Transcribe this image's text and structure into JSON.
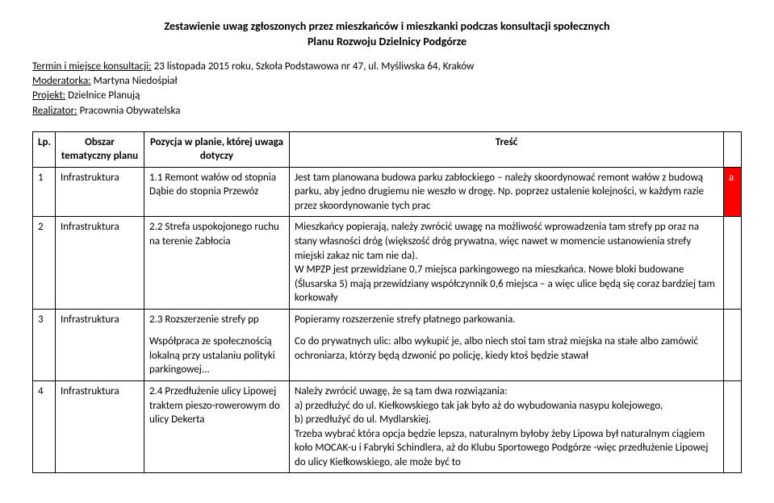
{
  "header": {
    "title": "Zestawienie uwag zgłoszonych przez mieszkańców i mieszkanki podczas konsultacji społecznych",
    "subtitle": "Planu Rozwoju Dzielnicy Podgórze"
  },
  "meta": {
    "term_label": "Termin i miejsce konsultacji:",
    "term_value": " 23 listopada 2015 roku, Szkoła Podstawowa nr 47, ul. Myśliwska 64, Kraków",
    "moderator_label": "Moderatorka:",
    "moderator_value": " Martyna Niedośpiał",
    "project_label": "Projekt:",
    "project_value": " Dzielnice Planują",
    "realizer_label": "Realizator:",
    "realizer_value": " Pracownia Obywatelska"
  },
  "table": {
    "headers": {
      "lp": "Lp.",
      "area": "Obszar tematyczny planu",
      "position": "Pozycja w planie, której uwaga dotyczy",
      "content": "Treść",
      "flag": ""
    },
    "rows": [
      {
        "lp": "1",
        "area": "Infrastruktura",
        "position": "1.1 Remont wałów od stopnia Dąbie do stopnia Przewóz",
        "content": "Jest tam planowana budowa parku zabłockiego – należy skoordynować remont wałów z budową parku, aby jedno drugiemu nie weszło w drogę. Np. poprzez ustalenie kolejności, w każdym razie przez skoordynowanie tych prac",
        "flag": "a",
        "flag_class": "flag-a"
      },
      {
        "lp": "2",
        "area": "Infrastruktura",
        "position": "2.2 Strefa uspokojonego ruchu na terenie Zabłocia",
        "content": "Mieszkańcy popierają, należy zwrócić uwagę na możliwość wprowadzenia tam strefy pp oraz na stany własności dróg (większość dróg prywatna, więc nawet w momencie ustanowienia strefy miejski zakaz nic tam nie da).\nW MPZP jest przewidziane 0,7 miejsca parkingowego na mieszkańca. Nowe bloki budowane (Ślusarska 5) mają przewidziany współczynnik 0,6 miejsca – a więc ulice będą się coraz bardziej tam korkowały",
        "flag": ""
      },
      {
        "lp": "3",
        "area": "Infrastruktura",
        "position": "2.3 Rozszerzenie strefy pp",
        "position2": "Współpraca ze społecznością lokalną przy ustalaniu polityki parkingowej...",
        "content": "Popieramy rozszerzenie strefy płatnego parkowania.",
        "content2": "Co do prywatnych ulic: albo wykupić je, albo niech stoi tam straż miejska na stałe albo zamówić ochroniarza, którzy będą dzwonić po policję, kiedy ktoś będzie stawał",
        "flag": ""
      },
      {
        "lp": "4",
        "area": "Infrastruktura",
        "position": "2.4 Przedłużenie ulicy Lipowej traktem pieszo-rowerowym do ulicy Dekerta",
        "content": "Należy zwrócić uwagę, że są tam dwa rozwiązania:\na) przedłużyć do ul. Kiełkowskiego tak jak było aż do wybudowania nasypu kolejowego,\nb) przedłużyć do ul. Mydlarskiej.\nTrzeba wybrać która opcja będzie lepsza, naturalnym byłoby żeby Lipowa był naturalnym ciągiem koło MOCAK-u i Fabryki Schindlera, aż do Klubu Sportowego Podgórze -więc przedłużenie Lipowej do ulicy Kiełkowskiego, ale może być to",
        "flag": ""
      }
    ]
  }
}
